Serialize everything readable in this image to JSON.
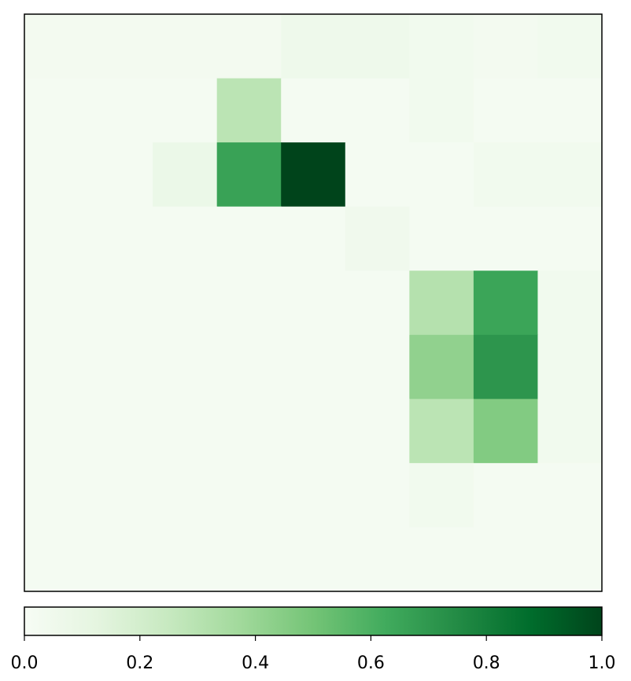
{
  "chart_data": {
    "type": "heatmap",
    "colormap": "Greens",
    "rows": 9,
    "cols": 9,
    "vmin": 0.0,
    "vmax": 1.0,
    "values": [
      [
        0.03,
        0.03,
        0.03,
        0.03,
        0.06,
        0.06,
        0.04,
        0.03,
        0.04
      ],
      [
        0.02,
        0.02,
        0.02,
        0.29,
        0.02,
        0.02,
        0.04,
        0.02,
        0.02
      ],
      [
        0.02,
        0.02,
        0.08,
        0.66,
        1.0,
        0.02,
        0.02,
        0.04,
        0.04
      ],
      [
        0.02,
        0.02,
        0.02,
        0.02,
        0.02,
        0.05,
        0.02,
        0.02,
        0.02
      ],
      [
        0.02,
        0.02,
        0.02,
        0.02,
        0.02,
        0.02,
        0.31,
        0.65,
        0.04
      ],
      [
        0.02,
        0.02,
        0.02,
        0.02,
        0.02,
        0.02,
        0.42,
        0.71,
        0.04
      ],
      [
        0.02,
        0.02,
        0.02,
        0.02,
        0.02,
        0.02,
        0.29,
        0.46,
        0.04
      ],
      [
        0.02,
        0.02,
        0.02,
        0.02,
        0.02,
        0.02,
        0.04,
        0.02,
        0.02
      ],
      [
        0.02,
        0.02,
        0.02,
        0.02,
        0.02,
        0.02,
        0.02,
        0.02,
        0.02
      ]
    ],
    "colorbar": {
      "orientation": "horizontal",
      "ticks": [
        0.0,
        0.2,
        0.4,
        0.6,
        0.8,
        1.0
      ],
      "tick_labels": [
        "0.0",
        "0.2",
        "0.4",
        "0.6",
        "0.8",
        "1.0"
      ]
    },
    "title": "",
    "xlabel": "",
    "ylabel": "",
    "grid": false
  }
}
